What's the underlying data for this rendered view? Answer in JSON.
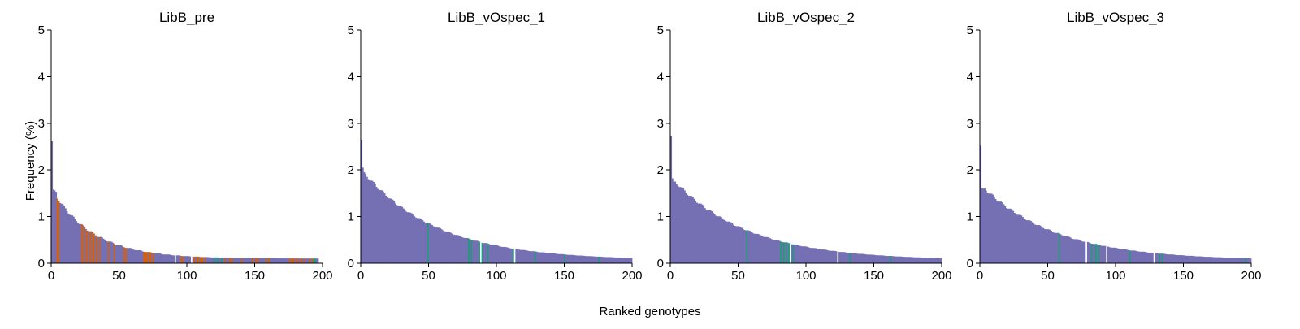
{
  "figure": {
    "ylabel": "Frequency (%)",
    "xlabel": "Ranked genotypes"
  },
  "colors": {
    "bar_default": "#7570b3",
    "highlight_orange": "#d95f02",
    "highlight_green": "#1b9e77",
    "highlight_white": "#ffffff"
  },
  "chart_data": [
    {
      "type": "bar",
      "title": "LibB_pre",
      "xlim": [
        0,
        200
      ],
      "ylim": [
        0,
        5
      ],
      "xticks": [
        0,
        50,
        100,
        150,
        200
      ],
      "yticks": [
        0,
        1,
        2,
        3,
        4,
        5
      ],
      "n_bars": 197,
      "curve": {
        "first_values": [
          2.62,
          1.58,
          1.56,
          1.53
        ],
        "base": 1.4,
        "decay_ranks": 30,
        "tail": 0.1
      },
      "highlights": {
        "orange": [
          4,
          5,
          22,
          24,
          26,
          28,
          30,
          31,
          33,
          35,
          42,
          46,
          53,
          55,
          68,
          69,
          70,
          72,
          73,
          75,
          95,
          97,
          105,
          107,
          108,
          110,
          111,
          113,
          128,
          131,
          133,
          140,
          148,
          150,
          152,
          158,
          160,
          175,
          177,
          178,
          180,
          182,
          184,
          186,
          190,
          192
        ],
        "green": [
          120,
          122,
          125,
          193,
          194
        ],
        "white": [
          91,
          103
        ]
      }
    },
    {
      "type": "bar",
      "title": "LibB_vOspec_1",
      "xlim": [
        0,
        200
      ],
      "ylim": [
        0,
        5
      ],
      "xticks": [
        0,
        50,
        100,
        150,
        200
      ],
      "yticks": [
        0,
        1,
        2,
        3,
        4,
        5
      ],
      "n_bars": 200,
      "curve": {
        "first_values": [
          2.65,
          2.05,
          1.95
        ],
        "base": 1.9,
        "decay_ranks": 55,
        "tail": 0.06
      },
      "highlights": {
        "orange": [],
        "green": [
          49,
          79,
          81,
          87,
          89,
          93,
          112,
          128,
          150,
          175
        ],
        "white": [
          88,
          113
        ]
      }
    },
    {
      "type": "bar",
      "title": "LibB_vOspec_2",
      "xlim": [
        0,
        200
      ],
      "ylim": [
        0,
        5
      ],
      "xticks": [
        0,
        50,
        100,
        150,
        200
      ],
      "yticks": [
        0,
        1,
        2,
        3,
        4,
        5
      ],
      "n_bars": 200,
      "curve": {
        "first_values": [
          2.72,
          1.82,
          1.75
        ],
        "base": 1.75,
        "decay_ranks": 55,
        "tail": 0.06
      },
      "highlights": {
        "orange": [],
        "green": [
          56,
          81,
          83,
          85,
          87,
          90,
          132,
          162
        ],
        "white": [
          88,
          123
        ]
      }
    },
    {
      "type": "bar",
      "title": "LibB_vOspec_3",
      "xlim": [
        0,
        200
      ],
      "ylim": [
        0,
        5
      ],
      "xticks": [
        0,
        50,
        100,
        150,
        200
      ],
      "yticks": [
        0,
        1,
        2,
        3,
        4,
        5
      ],
      "n_bars": 200,
      "curve": {
        "first_values": [
          2.52,
          1.62,
          1.6
        ],
        "base": 1.6,
        "decay_ranks": 55,
        "tail": 0.06
      },
      "highlights": {
        "orange": [],
        "green": [
          58,
          82,
          85,
          87,
          110,
          132,
          134,
          195
        ],
        "white": [
          78,
          93,
          128
        ]
      }
    }
  ]
}
